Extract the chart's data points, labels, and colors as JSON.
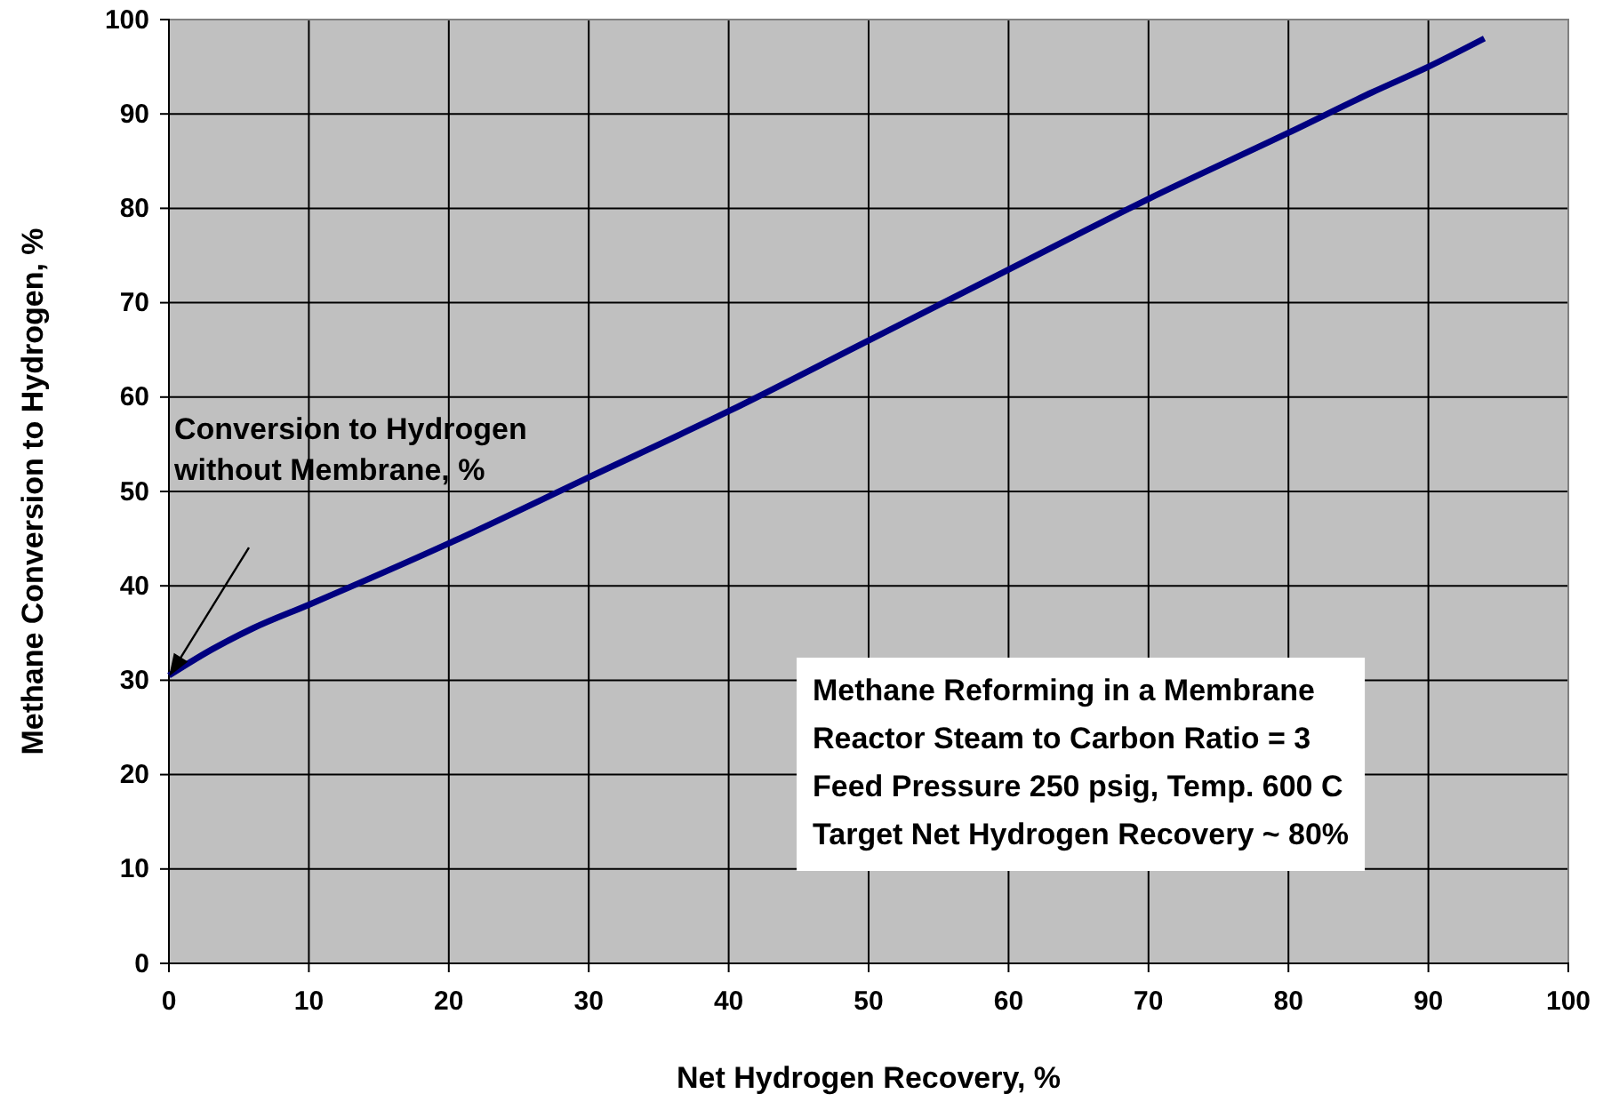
{
  "chart_data": {
    "type": "line",
    "xlabel": "Net Hydrogen Recovery, %",
    "ylabel": "Methane Conversion to Hydrogen, %",
    "x": [
      0,
      3,
      6,
      10,
      20,
      30,
      40,
      50,
      60,
      70,
      80,
      86,
      90,
      94
    ],
    "series": [
      {
        "color": "#000080",
        "values": [
          30.5,
          33.2,
          35.5,
          38,
          44.5,
          51.5,
          58.5,
          66,
          73.5,
          81,
          88,
          92.3,
          95,
          98
        ]
      }
    ],
    "xlim": [
      0,
      100
    ],
    "ylim": [
      0,
      100
    ],
    "xticks": [
      0,
      10,
      20,
      30,
      40,
      50,
      60,
      70,
      80,
      90,
      100
    ],
    "yticks": [
      0,
      10,
      20,
      30,
      40,
      50,
      60,
      70,
      80,
      90,
      100
    ],
    "grid": true,
    "marker": "none",
    "line_style": "solid",
    "annotations": [
      "Conversion to Hydrogen\nwithout Membrane, %",
      "Methane Reforming in a Membrane\nReactor  Steam to Carbon Ratio = 3\nFeed Pressure 250 psig, Temp. 600 C\nTarget Net Hydrogen Recovery ~ 80%"
    ]
  }
}
